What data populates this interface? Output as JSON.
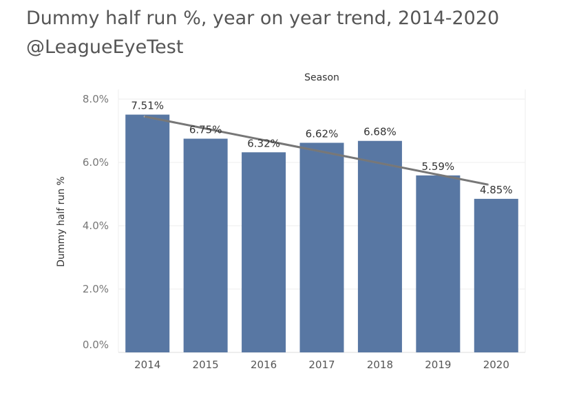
{
  "title": {
    "line1": "Dummy half run %, year on year trend, 2014-2020",
    "line2": "@LeagueEyeTest"
  },
  "colors": {
    "bar": "#5877A3",
    "trend": "#3a3a3a",
    "grid": "#eeeeee",
    "text": "#555555"
  },
  "chart_data": {
    "type": "bar",
    "title": "Dummy half run %, year on year trend, 2014-2020",
    "xlabel": "Season",
    "ylabel": "Dummy half run %",
    "categories": [
      "2014",
      "2015",
      "2016",
      "2017",
      "2018",
      "2019",
      "2020"
    ],
    "values": [
      7.51,
      6.75,
      6.32,
      6.62,
      6.68,
      5.59,
      4.85
    ],
    "data_labels": [
      "7.51%",
      "6.75%",
      "6.32%",
      "6.62%",
      "6.68%",
      "5.59%",
      "4.85%"
    ],
    "ylim": [
      0,
      8
    ],
    "yticks": [
      0,
      2,
      4,
      6,
      8
    ],
    "ytick_labels": [
      "0.0%",
      "2.0%",
      "4.0%",
      "6.0%",
      "8.0%"
    ],
    "trend_line": {
      "start": 7.45,
      "end": 5.3
    },
    "grid": true,
    "xlabel_position": "top"
  }
}
